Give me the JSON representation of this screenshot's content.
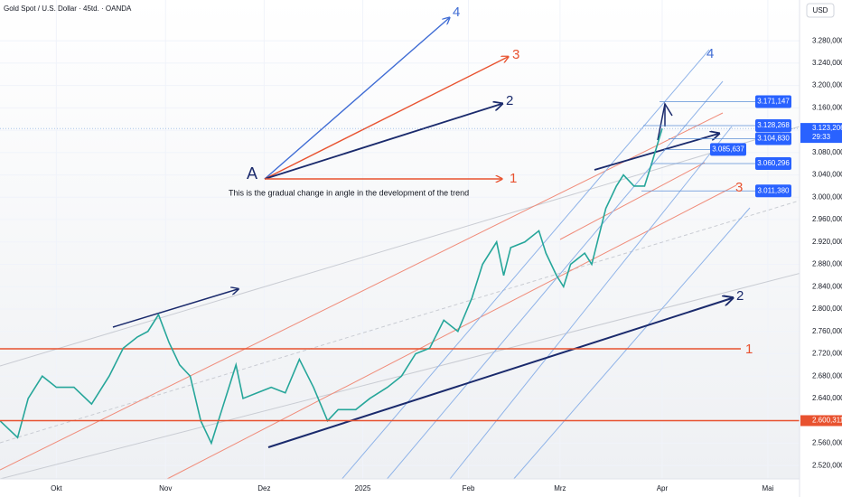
{
  "chart_data": {
    "type": "line",
    "title": "Gold Spot / U.S. Dollar · 45td. · OANDA",
    "currency": "USD",
    "annotation": "This is the gradual change in angle in the development of the trend",
    "point_label": "A",
    "wave_labels": [
      "1",
      "2",
      "3",
      "4"
    ],
    "channel_labels": [
      "1",
      "2",
      "3",
      "4"
    ],
    "countdown": "29:33",
    "x": [
      -16,
      -11,
      -8,
      -4,
      0,
      5,
      10,
      15,
      19,
      23,
      26,
      29,
      32,
      35,
      38,
      41,
      44,
      47,
      51,
      53,
      57,
      61,
      65,
      69,
      73,
      77,
      80,
      85,
      89,
      94,
      98,
      102,
      106,
      110,
      114,
      118,
      121,
      125,
      127,
      129,
      133,
      137,
      139,
      142,
      144,
      146,
      150,
      152,
      156,
      159,
      161,
      164,
      167,
      169,
      172
    ],
    "series": [
      {
        "name": "Gold Spot",
        "color": "#26a69a",
        "values": [
          2600,
          2570,
          2640,
          2680,
          2660,
          2660,
          2630,
          2680,
          2730,
          2750,
          2760,
          2790,
          2740,
          2700,
          2680,
          2600,
          2560,
          2620,
          2700,
          2640,
          2650,
          2660,
          2650,
          2710,
          2660,
          2600,
          2620,
          2620,
          2640,
          2660,
          2680,
          2720,
          2730,
          2780,
          2760,
          2820,
          2880,
          2920,
          2860,
          2910,
          2920,
          2940,
          2900,
          2860,
          2840,
          2880,
          2900,
          2880,
          2980,
          3020,
          3040,
          3020,
          3020,
          3060,
          3123
        ]
      }
    ],
    "xlim": [
      -16,
      211
    ],
    "xticks": [
      {
        "value": 0,
        "label": "Okt"
      },
      {
        "value": 31,
        "label": "Nov"
      },
      {
        "value": 59,
        "label": "Dez"
      },
      {
        "value": 87,
        "label": "2025"
      },
      {
        "value": 117,
        "label": "Feb"
      },
      {
        "value": 143,
        "label": "Mrz"
      },
      {
        "value": 172,
        "label": "Apr"
      },
      {
        "value": 202,
        "label": "Mai"
      }
    ],
    "ylim": [
      2496,
      3353
    ],
    "yticks": [
      {
        "value": 2520,
        "label": "2.520,000"
      },
      {
        "value": 2560,
        "label": "2.560,000"
      },
      {
        "value": 2600,
        "label": "2.600,000"
      },
      {
        "value": 2640,
        "label": "2.640,000"
      },
      {
        "value": 2680,
        "label": "2.680,000"
      },
      {
        "value": 2720,
        "label": "2.720,000"
      },
      {
        "value": 2760,
        "label": "2.760,000"
      },
      {
        "value": 2800,
        "label": "2.800,000"
      },
      {
        "value": 2840,
        "label": "2.840,000"
      },
      {
        "value": 2880,
        "label": "2.880,000"
      },
      {
        "value": 2920,
        "label": "2.920,000"
      },
      {
        "value": 2960,
        "label": "2.960,000"
      },
      {
        "value": 3000,
        "label": "3.000,000"
      },
      {
        "value": 3040,
        "label": "3.040,000"
      },
      {
        "value": 3080,
        "label": "3.080,000"
      },
      {
        "value": 3120,
        "label": "3.120,000"
      },
      {
        "value": 3160,
        "label": "3.160,000"
      },
      {
        "value": 3200,
        "label": "3.200,000"
      },
      {
        "value": 3240,
        "label": "3.240,000"
      },
      {
        "value": 3280,
        "label": "3.280,000"
      }
    ],
    "price_tags": [
      {
        "value": 3171.147,
        "label": "3.171,147"
      },
      {
        "value": 3128.268,
        "label": "3.128,268"
      },
      {
        "value": 3104.83,
        "label": "3.104,830"
      },
      {
        "value": 3085.637,
        "label": "3.085,637"
      },
      {
        "value": 3060.296,
        "label": "3.060,296"
      },
      {
        "value": 3011.38,
        "label": "3.011,380"
      }
    ],
    "last_price": {
      "value": 3123.206,
      "label": "3.123,206"
    },
    "level_price": {
      "value": 2600.311,
      "label": "2.600,311"
    }
  }
}
